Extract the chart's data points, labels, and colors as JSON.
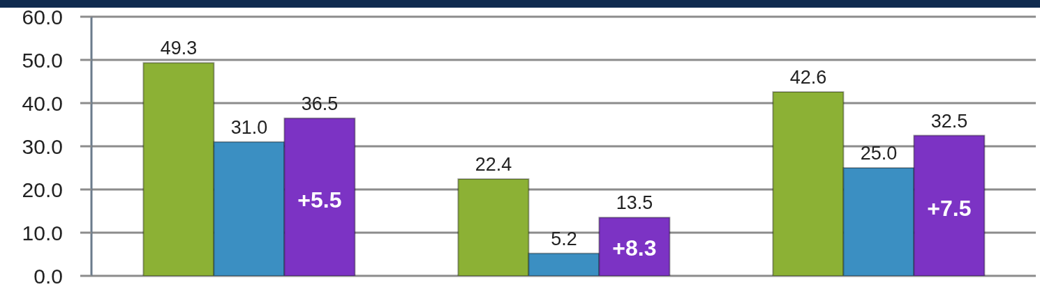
{
  "chart_data": {
    "type": "bar",
    "categories": [
      null,
      null,
      null
    ],
    "series": [
      {
        "color": "#8cb135",
        "values": [
          49.3,
          22.4,
          42.6
        ],
        "value_labels": [
          "49.3",
          "22.4",
          "42.6"
        ]
      },
      {
        "color": "#3b8fc2",
        "values": [
          31.0,
          5.2,
          25.0
        ],
        "value_labels": [
          "31.0",
          "5.2",
          "25.0"
        ]
      },
      {
        "color": "#7c33c4",
        "values": [
          36.5,
          13.5,
          32.5
        ],
        "value_labels": [
          "36.5",
          "13.5",
          "32.5"
        ]
      }
    ],
    "ylim": [
      0,
      60
    ],
    "yticks": [
      {
        "value": 0,
        "label": "0.0"
      },
      {
        "value": 10,
        "label": "10.0"
      },
      {
        "value": 20,
        "label": "20.0"
      },
      {
        "value": 30,
        "label": "30.0"
      },
      {
        "value": 40,
        "label": "40.0"
      },
      {
        "value": 50,
        "label": "50.0"
      },
      {
        "value": 60,
        "label": "60.0"
      }
    ],
    "grid": "y",
    "tick_labels": "y",
    "annotations": [
      "+5.5",
      "+8.3",
      "+7.5"
    ]
  }
}
